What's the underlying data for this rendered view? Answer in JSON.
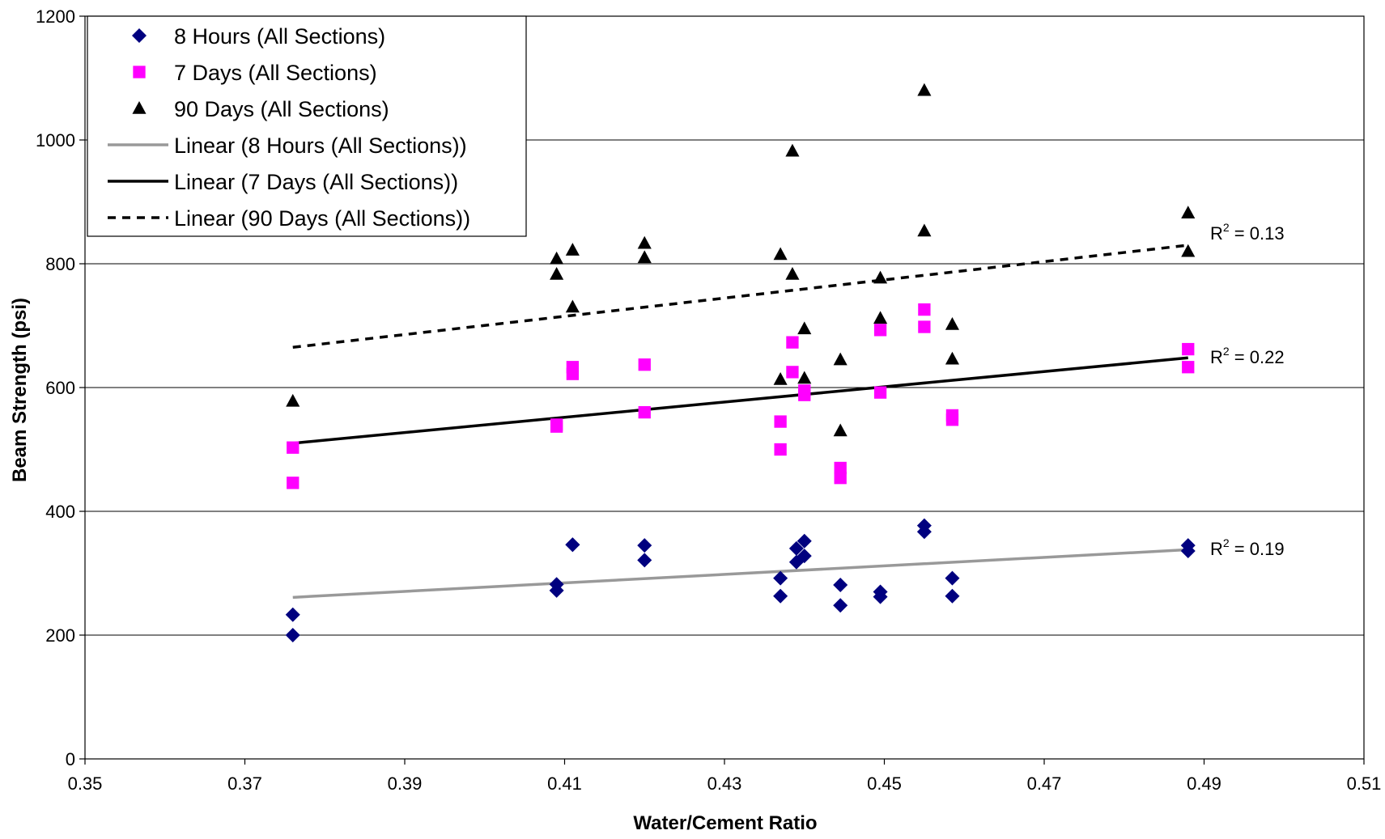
{
  "chart_data": {
    "type": "scatter",
    "xlabel": "Water/Cement  Ratio",
    "ylabel": "Beam Strength (psi)",
    "xlim": [
      0.35,
      0.51
    ],
    "ylim": [
      0,
      1200
    ],
    "xticks": [
      "0.35",
      "0.37",
      "0.39",
      "0.41",
      "0.43",
      "0.45",
      "0.47",
      "0.49",
      "0.51"
    ],
    "yticks": [
      "0",
      "200",
      "400",
      "600",
      "800",
      "1000",
      "1200"
    ],
    "grid": "horizontal",
    "legend_position": "top-left",
    "series": [
      {
        "name": "8 Hours (All Sections)",
        "marker": "diamond",
        "color": "#00007F",
        "points": [
          [
            0.376,
            233
          ],
          [
            0.376,
            200
          ],
          [
            0.409,
            282
          ],
          [
            0.409,
            272
          ],
          [
            0.411,
            346
          ],
          [
            0.411,
            346
          ],
          [
            0.42,
            345
          ],
          [
            0.42,
            321
          ],
          [
            0.437,
            292
          ],
          [
            0.437,
            263
          ],
          [
            0.439,
            340
          ],
          [
            0.439,
            318
          ],
          [
            0.44,
            352
          ],
          [
            0.44,
            328
          ],
          [
            0.4445,
            281
          ],
          [
            0.4445,
            248
          ],
          [
            0.4495,
            270
          ],
          [
            0.4495,
            262
          ],
          [
            0.455,
            377
          ],
          [
            0.455,
            367
          ],
          [
            0.4585,
            292
          ],
          [
            0.4585,
            263
          ],
          [
            0.488,
            345
          ],
          [
            0.488,
            336
          ]
        ]
      },
      {
        "name": "7 Days (All Sections)",
        "marker": "square",
        "color": "#FF00FF",
        "points": [
          [
            0.376,
            503
          ],
          [
            0.376,
            446
          ],
          [
            0.409,
            540
          ],
          [
            0.409,
            537
          ],
          [
            0.411,
            633
          ],
          [
            0.411,
            622
          ],
          [
            0.42,
            637
          ],
          [
            0.42,
            560
          ],
          [
            0.437,
            545
          ],
          [
            0.437,
            500
          ],
          [
            0.4385,
            673
          ],
          [
            0.4385,
            625
          ],
          [
            0.44,
            595
          ],
          [
            0.44,
            588
          ],
          [
            0.4445,
            470
          ],
          [
            0.4445,
            454
          ],
          [
            0.4495,
            693
          ],
          [
            0.4495,
            592
          ],
          [
            0.455,
            726
          ],
          [
            0.455,
            698
          ],
          [
            0.4585,
            555
          ],
          [
            0.4585,
            548
          ],
          [
            0.488,
            662
          ],
          [
            0.488,
            633
          ]
        ]
      },
      {
        "name": "90 Days (All Sections)",
        "marker": "triangle",
        "color": "#000000",
        "points": [
          [
            0.376,
            578
          ],
          [
            0.409,
            808
          ],
          [
            0.409,
            783
          ],
          [
            0.411,
            822
          ],
          [
            0.411,
            730
          ],
          [
            0.42,
            833
          ],
          [
            0.42,
            810
          ],
          [
            0.437,
            815
          ],
          [
            0.437,
            613
          ],
          [
            0.4385,
            982
          ],
          [
            0.4385,
            783
          ],
          [
            0.44,
            695
          ],
          [
            0.44,
            615
          ],
          [
            0.4445,
            645
          ],
          [
            0.4445,
            530
          ],
          [
            0.4495,
            777
          ],
          [
            0.4495,
            712
          ],
          [
            0.455,
            1080
          ],
          [
            0.455,
            853
          ],
          [
            0.4585,
            702
          ],
          [
            0.4585,
            646
          ],
          [
            0.488,
            882
          ],
          [
            0.488,
            820
          ]
        ]
      }
    ],
    "trendlines": [
      {
        "name": "Linear (8 Hours (All Sections))",
        "color": "#999999",
        "dash": "solid",
        "x": [
          0.376,
          0.488
        ],
        "y": [
          261,
          338
        ],
        "r2_label": "R",
        "r2_exp": "2",
        "r2_value": " = 0.19",
        "label_y": 340
      },
      {
        "name": "Linear (7 Days (All Sections))",
        "color": "#000000",
        "dash": "solid",
        "x": [
          0.376,
          0.488
        ],
        "y": [
          510,
          648
        ],
        "r2_label": "R",
        "r2_exp": "2",
        "r2_value": " = 0.22",
        "label_y": 650
      },
      {
        "name": "Linear (90 Days (All Sections))",
        "color": "#000000",
        "dash": "dashed",
        "x": [
          0.376,
          0.488
        ],
        "y": [
          665,
          830
        ],
        "r2_label": "R",
        "r2_exp": "2",
        "r2_value": " = 0.13",
        "label_y": 850
      }
    ]
  }
}
